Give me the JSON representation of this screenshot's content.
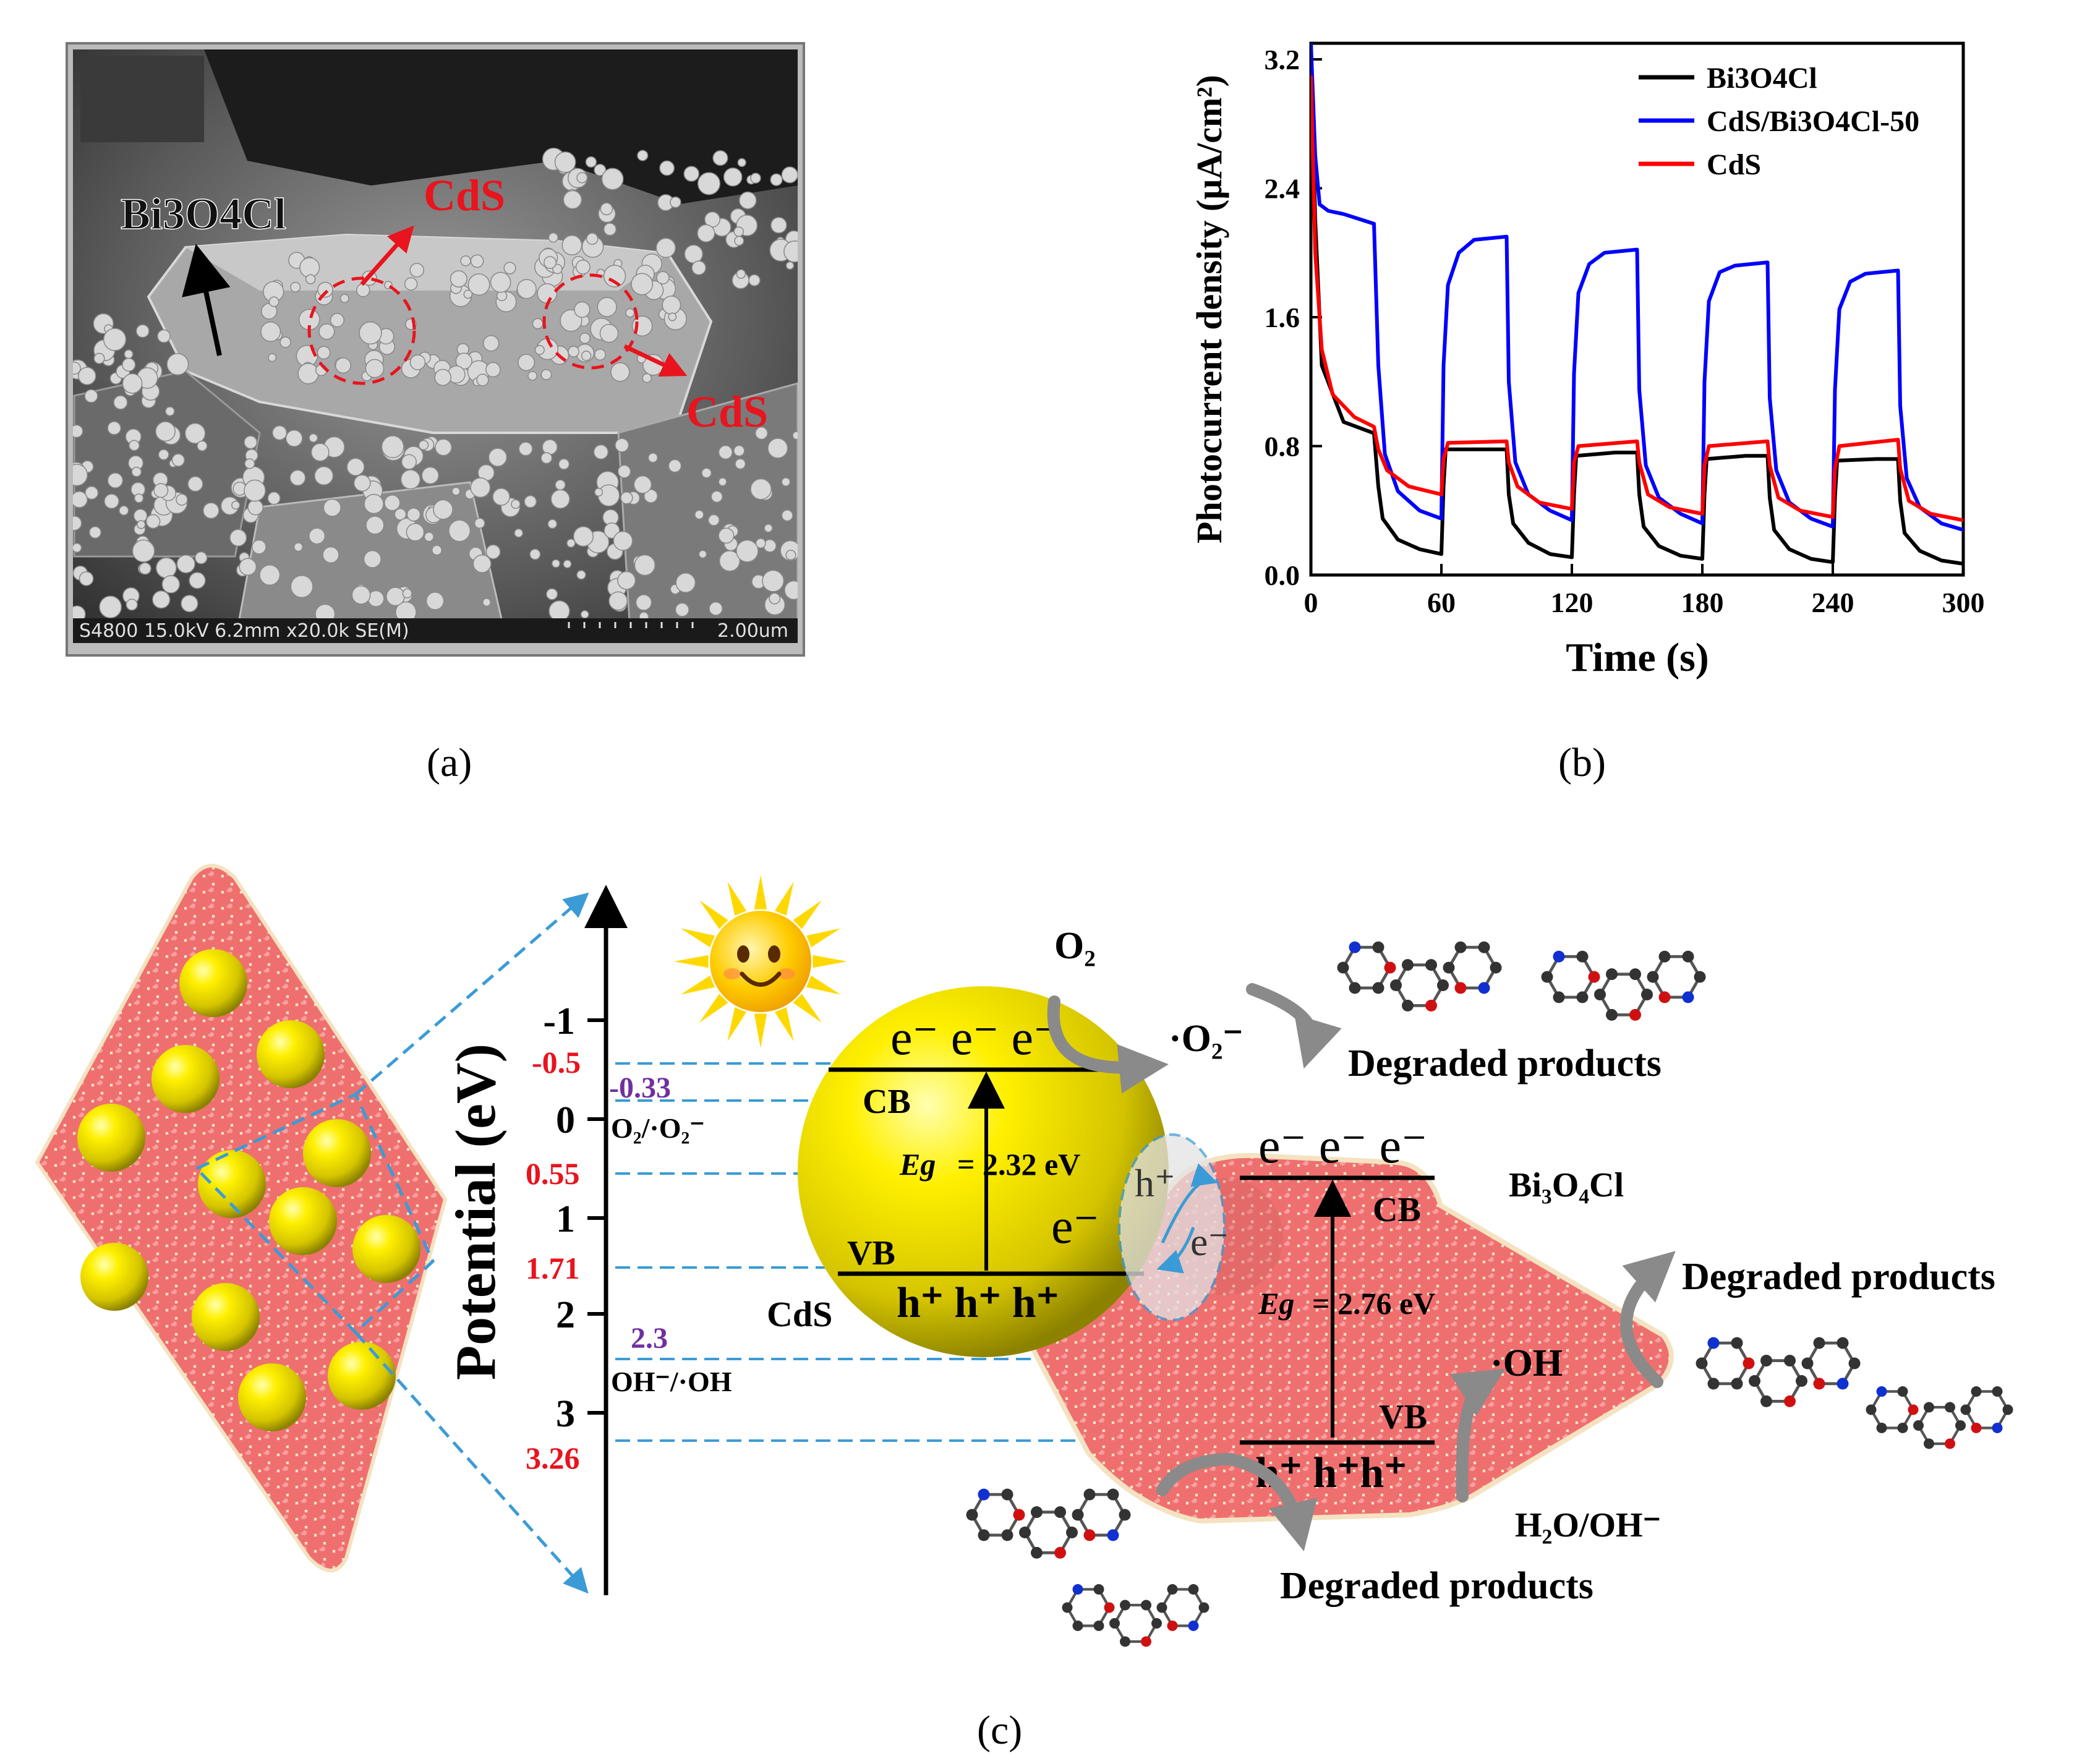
{
  "panel_a": {
    "label": "(a)",
    "footer": "S4800 15.0kV 6.2mm x20.0k SE(M)",
    "scale": "2.00um",
    "label_bi3o4cl": "Bi3O4Cl",
    "label_cds_1": "CdS",
    "label_cds_2": "CdS"
  },
  "panel_b": {
    "label": "(b)"
  },
  "chart_data": {
    "type": "line",
    "xlabel": "Time (s)",
    "ylabel": "Photocurrent density (μA/cm²)",
    "xlim": [
      0,
      300
    ],
    "ylim": [
      0,
      3.3
    ],
    "xticks": [
      0,
      60,
      120,
      180,
      240,
      300
    ],
    "yticks": [
      0.0,
      0.8,
      1.6,
      2.4,
      3.2
    ],
    "legend_position": "top-right",
    "series": [
      {
        "name": "Bi3O4Cl",
        "color": "#000000",
        "x": [
          0,
          2,
          5,
          15,
          29,
          31,
          33,
          40,
          50,
          60,
          61,
          62,
          80,
          90,
          91,
          93,
          100,
          110,
          120,
          121,
          122,
          140,
          150,
          151,
          153,
          160,
          170,
          180,
          181,
          182,
          200,
          210,
          211,
          213,
          220,
          230,
          240,
          241,
          242,
          260,
          270,
          271,
          273,
          280,
          290,
          300
        ],
        "y": [
          3.3,
          2.2,
          1.3,
          0.95,
          0.88,
          0.55,
          0.35,
          0.22,
          0.16,
          0.13,
          0.55,
          0.78,
          0.78,
          0.78,
          0.5,
          0.32,
          0.2,
          0.13,
          0.11,
          0.5,
          0.74,
          0.76,
          0.76,
          0.5,
          0.3,
          0.18,
          0.12,
          0.1,
          0.5,
          0.72,
          0.74,
          0.74,
          0.48,
          0.28,
          0.16,
          0.1,
          0.08,
          0.48,
          0.71,
          0.72,
          0.72,
          0.46,
          0.26,
          0.15,
          0.09,
          0.07
        ]
      },
      {
        "name": "CdS/Bi3O4Cl-50",
        "color": "#0000ff",
        "x": [
          0,
          2,
          4,
          8,
          15,
          29,
          31,
          34,
          40,
          50,
          60,
          61,
          63,
          68,
          75,
          90,
          91,
          94,
          100,
          110,
          120,
          121,
          123,
          128,
          135,
          150,
          151,
          154,
          160,
          170,
          180,
          181,
          183,
          188,
          195,
          210,
          211,
          214,
          220,
          230,
          240,
          241,
          243,
          248,
          255,
          270,
          271,
          274,
          280,
          290,
          300
        ],
        "y": [
          3.3,
          2.6,
          2.3,
          2.26,
          2.24,
          2.18,
          1.3,
          0.75,
          0.52,
          0.4,
          0.35,
          1.3,
          1.8,
          2.0,
          2.08,
          2.1,
          1.2,
          0.7,
          0.5,
          0.4,
          0.34,
          1.25,
          1.75,
          1.93,
          2.0,
          2.02,
          1.15,
          0.68,
          0.48,
          0.38,
          0.32,
          1.2,
          1.7,
          1.88,
          1.92,
          1.94,
          1.1,
          0.65,
          0.45,
          0.35,
          0.3,
          1.15,
          1.65,
          1.82,
          1.87,
          1.89,
          1.05,
          0.6,
          0.42,
          0.32,
          0.28
        ]
      },
      {
        "name": "CdS",
        "color": "#ff0000",
        "x": [
          0,
          2,
          5,
          10,
          20,
          29,
          31,
          35,
          45,
          60,
          61,
          63,
          90,
          91,
          95,
          105,
          120,
          121,
          123,
          150,
          151,
          155,
          165,
          180,
          181,
          183,
          210,
          211,
          215,
          225,
          240,
          241,
          243,
          270,
          271,
          275,
          285,
          300
        ],
        "y": [
          3.1,
          2.0,
          1.4,
          1.12,
          0.98,
          0.92,
          0.78,
          0.65,
          0.55,
          0.5,
          0.72,
          0.82,
          0.83,
          0.7,
          0.55,
          0.45,
          0.41,
          0.7,
          0.8,
          0.83,
          0.7,
          0.5,
          0.42,
          0.38,
          0.68,
          0.8,
          0.83,
          0.68,
          0.48,
          0.4,
          0.36,
          0.66,
          0.8,
          0.84,
          0.66,
          0.46,
          0.38,
          0.34
        ]
      }
    ]
  },
  "panel_c": {
    "label": "(c)",
    "axis_title": "Potential (eV)",
    "axis_ticks": [
      "-1",
      "0",
      "1",
      "2",
      "3"
    ],
    "red_values": [
      "-0.5",
      "0.55",
      "1.71",
      "3.26"
    ],
    "purple_value_1": "-0.33",
    "purple_value_2": "2.3",
    "redox_o2": "O₂/·O₂⁻",
    "redox_oh": "OH⁻/·OH",
    "cds": {
      "name": "CdS",
      "cb": "CB",
      "vb": "VB",
      "eg_label": "Eg",
      "eg_value": "= 2.32 eV",
      "electrons": "e⁻ e⁻ e⁻",
      "single_electron": "e⁻",
      "holes": "h⁺ h⁺ h⁺"
    },
    "bi3o4cl": {
      "name": "Bi₃O₄Cl",
      "cb": "CB",
      "vb": "VB",
      "eg_label": "Eg",
      "eg_value": "= 2.76 eV",
      "electrons": "e⁻ e⁻ e⁻",
      "holes": "h⁺ h⁺h⁺"
    },
    "interface_hole": "h⁺",
    "interface_electron": "e⁻",
    "o2": "O₂",
    "superoxide": "·O₂⁻",
    "hydroxyl": "·OH",
    "water": "H₂O/OH⁻",
    "degraded_1": "Degraded products",
    "degraded_2": "Degraded products",
    "degraded_3": "Degraded products"
  },
  "colors": {
    "red_label": "#e8141e",
    "purple_label": "#7030a0",
    "dash_blue": "#3b9bd6",
    "cds_yellow": "#e8d400",
    "bi3o4cl_pink": "#f07d7d",
    "arrow_grey": "#8a8a8a"
  }
}
